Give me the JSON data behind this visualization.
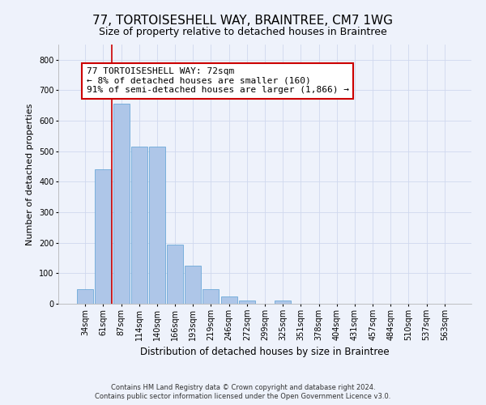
{
  "title": "77, TORTOISESHELL WAY, BRAINTREE, CM7 1WG",
  "subtitle": "Size of property relative to detached houses in Braintree",
  "xlabel": "Distribution of detached houses by size in Braintree",
  "ylabel": "Number of detached properties",
  "footer_line1": "Contains HM Land Registry data © Crown copyright and database right 2024.",
  "footer_line2": "Contains public sector information licensed under the Open Government Licence v3.0.",
  "categories": [
    "34sqm",
    "61sqm",
    "87sqm",
    "114sqm",
    "140sqm",
    "166sqm",
    "193sqm",
    "219sqm",
    "246sqm",
    "272sqm",
    "299sqm",
    "325sqm",
    "351sqm",
    "378sqm",
    "404sqm",
    "431sqm",
    "457sqm",
    "484sqm",
    "510sqm",
    "537sqm",
    "563sqm"
  ],
  "values": [
    47,
    440,
    655,
    515,
    515,
    193,
    125,
    47,
    25,
    10,
    0,
    10,
    0,
    0,
    0,
    0,
    0,
    0,
    0,
    0,
    0
  ],
  "bar_color": "#aec6e8",
  "bar_edge_color": "#5a9fd4",
  "grid_color": "#d0d8ee",
  "bg_color": "#eef2fb",
  "annotation_text": "77 TORTOISESHELL WAY: 72sqm\n← 8% of detached houses are smaller (160)\n91% of semi-detached houses are larger (1,866) →",
  "annotation_box_color": "#ffffff",
  "annotation_border_color": "#cc0000",
  "vline_color": "#cc0000",
  "ylim": [
    0,
    850
  ],
  "yticks": [
    0,
    100,
    200,
    300,
    400,
    500,
    600,
    700,
    800
  ],
  "title_fontsize": 11,
  "subtitle_fontsize": 9,
  "annotation_fontsize": 8,
  "ylabel_fontsize": 8,
  "xlabel_fontsize": 8.5,
  "tick_fontsize": 7,
  "footer_fontsize": 6
}
